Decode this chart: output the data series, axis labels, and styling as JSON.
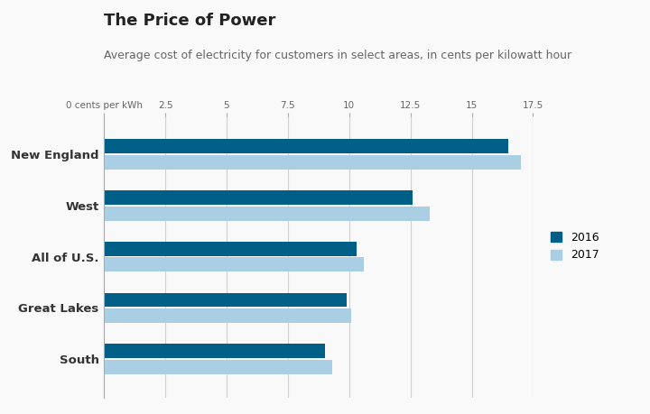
{
  "title": "The Price of Power",
  "subtitle": "Average cost of electricity for customers in select areas, in cents per kilowatt hour",
  "categories": [
    "New England",
    "West",
    "All of U.S.",
    "Great Lakes",
    "South"
  ],
  "values_2016": [
    16.5,
    12.6,
    10.3,
    9.9,
    9.0
  ],
  "values_2017": [
    17.0,
    13.3,
    10.6,
    10.1,
    9.3
  ],
  "color_2016": "#005f87",
  "color_2017": "#aacfe4",
  "xlim": [
    0,
    17.5
  ],
  "xticks": [
    0,
    2.5,
    5,
    7.5,
    10,
    12.5,
    15,
    17.5
  ],
  "xtick_labels": [
    "0 cents per kWh",
    "2.5",
    "5",
    "7.5",
    "10",
    "12.5",
    "15",
    "17.5"
  ],
  "background_color": "#f9f9f9",
  "grid_color": "#d0d0d0",
  "title_fontsize": 13,
  "subtitle_fontsize": 9,
  "legend_labels": [
    "2016",
    "2017"
  ],
  "bar_height": 0.28,
  "bar_gap": 0.03
}
